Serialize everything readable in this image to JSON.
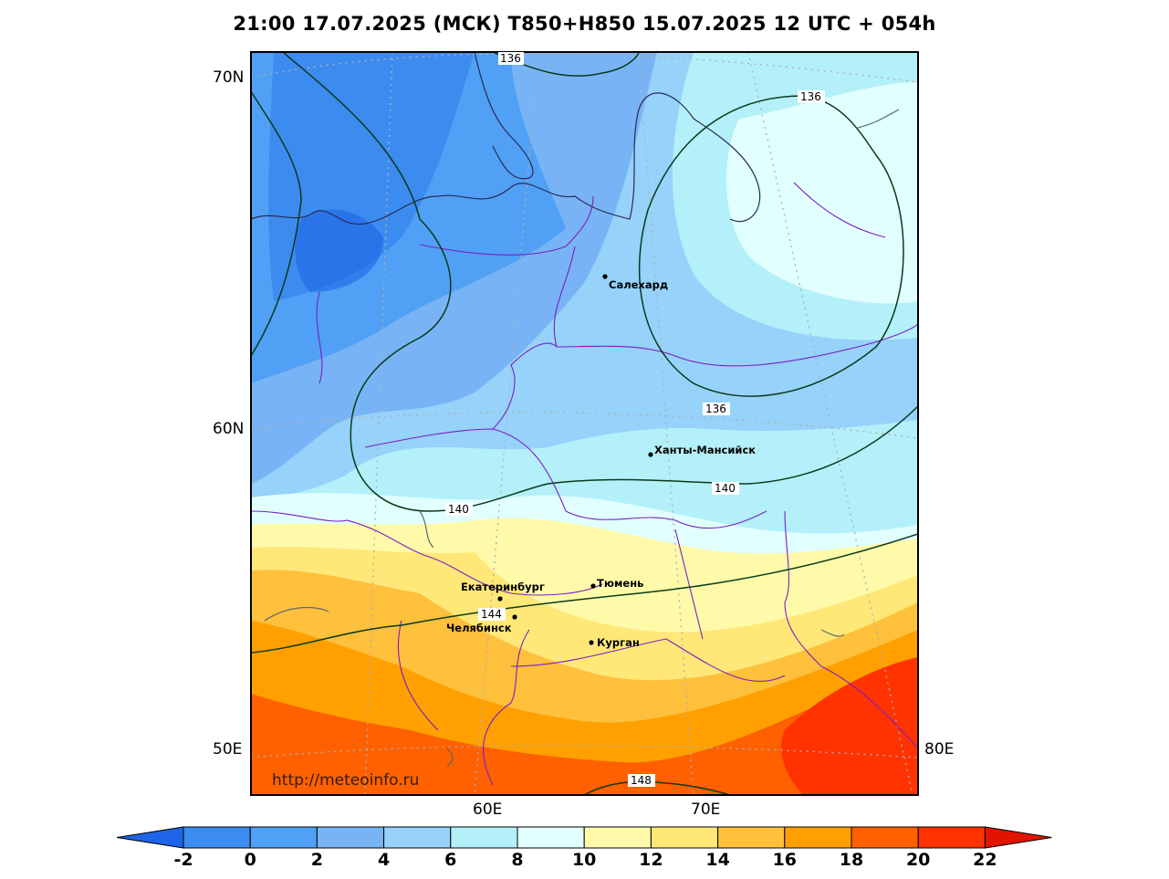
{
  "title": "21:00 17.07.2025 (МСК) T850+H850 15.07.2025 12 UTC + 054h",
  "website": "http://meteoinfo.ru",
  "lat_labels": [
    "70N",
    "60N",
    "50E"
  ],
  "lon_labels": [
    "60E",
    "70E",
    "80E"
  ],
  "cities": [
    "Салехард",
    "Ханты-Мансийск",
    "Екатеринбург",
    "Тюмень",
    "Челябинск",
    "Курган"
  ],
  "contour_labels": [
    "136",
    "136",
    "136",
    "140",
    "140",
    "144",
    "148"
  ],
  "colorbar": {
    "ticks": [
      "-2",
      "0",
      "2",
      "4",
      "6",
      "8",
      "10",
      "12",
      "14",
      "16",
      "18",
      "20",
      "22"
    ],
    "colors": [
      "#1e64e6",
      "#3c8cf0",
      "#50a0f5",
      "#78b4f5",
      "#96d2fa",
      "#b4f0fa",
      "#e1ffff",
      "#fffaaa",
      "#ffe878",
      "#ffc03c",
      "#ffa000",
      "#ff6000",
      "#ff3200",
      "#e11400"
    ]
  }
}
